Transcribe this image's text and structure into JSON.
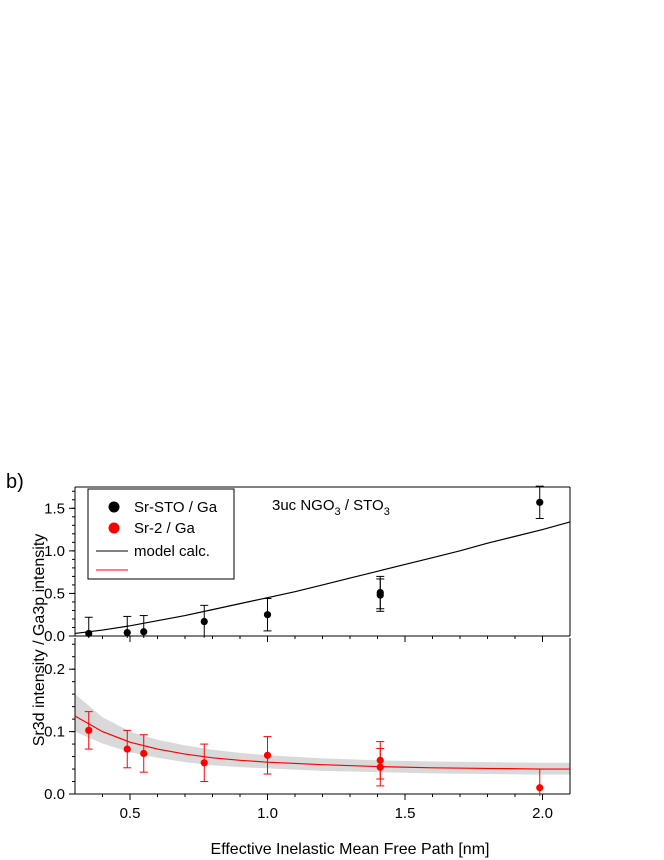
{
  "figure": {
    "panel_label": "b)",
    "ylabel": "Sr3d intensity / Ga3p intensity",
    "xlabel": "Effective Inelastic Mean Free Path [nm]",
    "annotation": {
      "base": "3uc NGO",
      "sub1": "3",
      "mid": " / STO",
      "sub2": "3"
    },
    "legend": [
      {
        "label": "Sr-STO / Ga",
        "kind": "marker",
        "color": "#000000"
      },
      {
        "label": "Sr-2 / Ga",
        "kind": "marker",
        "color": "#ff0000"
      },
      {
        "label": "model calc.",
        "kind": "line",
        "color": "#000000"
      },
      {
        "label": "",
        "kind": "line",
        "color": "#ff0000"
      }
    ]
  },
  "chart_data": [
    {
      "type": "scatter",
      "panel": "top",
      "xlim": [
        0.3,
        2.1
      ],
      "ylim": [
        0,
        1.75
      ],
      "x_ticks": [
        0.5,
        1.0,
        1.5,
        2.0
      ],
      "y_ticks": [
        0.0,
        0.5,
        1.0,
        1.5
      ],
      "y_tick_labels": [
        "0.0",
        "0.5",
        "1.0",
        "1.5"
      ],
      "series": [
        {
          "name": "Sr-STO / Ga",
          "color": "#000000",
          "points": [
            {
              "x": 0.35,
              "y": 0.03,
              "err": 0.19
            },
            {
              "x": 0.49,
              "y": 0.04,
              "err": 0.19
            },
            {
              "x": 0.55,
              "y": 0.05,
              "err": 0.19
            },
            {
              "x": 0.77,
              "y": 0.17,
              "err": 0.19
            },
            {
              "x": 1.0,
              "y": 0.25,
              "err": 0.19
            },
            {
              "x": 1.41,
              "y": 0.51,
              "err": 0.19
            },
            {
              "x": 1.41,
              "y": 0.48,
              "err": 0.19
            },
            {
              "x": 1.99,
              "y": 1.57,
              "err": 0.19
            }
          ]
        },
        {
          "name": "model calc.",
          "color": "#000000",
          "line": [
            [
              0.3,
              0.03
            ],
            [
              0.4,
              0.07
            ],
            [
              0.5,
              0.12
            ],
            [
              0.6,
              0.18
            ],
            [
              0.7,
              0.24
            ],
            [
              0.8,
              0.31
            ],
            [
              0.9,
              0.38
            ],
            [
              1.0,
              0.45
            ],
            [
              1.1,
              0.52
            ],
            [
              1.2,
              0.6
            ],
            [
              1.3,
              0.68
            ],
            [
              1.4,
              0.76
            ],
            [
              1.5,
              0.84
            ],
            [
              1.6,
              0.92
            ],
            [
              1.7,
              1.0
            ],
            [
              1.8,
              1.09
            ],
            [
              1.9,
              1.17
            ],
            [
              2.0,
              1.25
            ],
            [
              2.1,
              1.34
            ]
          ]
        }
      ]
    },
    {
      "type": "scatter",
      "panel": "bottom",
      "xlim": [
        0.3,
        2.1
      ],
      "ylim": [
        0,
        0.25
      ],
      "x_ticks": [
        0.5,
        1.0,
        1.5,
        2.0
      ],
      "x_tick_labels": [
        "0.5",
        "1.0",
        "1.5",
        "2.0"
      ],
      "y_ticks": [
        0.0,
        0.1,
        0.2
      ],
      "y_tick_labels": [
        "0.0",
        "0.1",
        "0.2"
      ],
      "series": [
        {
          "name": "Sr-2 / Ga",
          "color": "#ff0000",
          "points": [
            {
              "x": 0.35,
              "y": 0.102,
              "err": 0.03
            },
            {
              "x": 0.49,
              "y": 0.072,
              "err": 0.03
            },
            {
              "x": 0.55,
              "y": 0.065,
              "err": 0.03
            },
            {
              "x": 0.77,
              "y": 0.05,
              "err": 0.03
            },
            {
              "x": 1.0,
              "y": 0.062,
              "err": 0.03
            },
            {
              "x": 1.41,
              "y": 0.054,
              "err": 0.03
            },
            {
              "x": 1.41,
              "y": 0.043,
              "err": 0.03
            },
            {
              "x": 1.99,
              "y": 0.01,
              "err": 0.03
            }
          ]
        },
        {
          "name": "model calc.",
          "color": "#ff0000",
          "band_color": "#d9d9d9",
          "line": [
            [
              0.3,
              0.125
            ],
            [
              0.4,
              0.1
            ],
            [
              0.5,
              0.083
            ],
            [
              0.6,
              0.072
            ],
            [
              0.7,
              0.064
            ],
            [
              0.8,
              0.058
            ],
            [
              0.9,
              0.054
            ],
            [
              1.0,
              0.051
            ],
            [
              1.2,
              0.047
            ],
            [
              1.4,
              0.044
            ],
            [
              1.6,
              0.042
            ],
            [
              1.8,
              0.041
            ],
            [
              2.0,
              0.04
            ],
            [
              2.1,
              0.04
            ]
          ],
          "band_upper": [
            [
              0.3,
              0.16
            ],
            [
              0.4,
              0.123
            ],
            [
              0.5,
              0.1
            ],
            [
              0.6,
              0.087
            ],
            [
              0.7,
              0.078
            ],
            [
              0.8,
              0.071
            ],
            [
              0.9,
              0.066
            ],
            [
              1.0,
              0.062
            ],
            [
              1.2,
              0.057
            ],
            [
              1.4,
              0.054
            ],
            [
              1.6,
              0.052
            ],
            [
              1.8,
              0.051
            ],
            [
              2.0,
              0.05
            ],
            [
              2.1,
              0.05
            ]
          ],
          "band_lower": [
            [
              0.3,
              0.1
            ],
            [
              0.4,
              0.081
            ],
            [
              0.5,
              0.067
            ],
            [
              0.6,
              0.058
            ],
            [
              0.7,
              0.051
            ],
            [
              0.8,
              0.046
            ],
            [
              0.9,
              0.043
            ],
            [
              1.0,
              0.041
            ],
            [
              1.2,
              0.037
            ],
            [
              1.4,
              0.035
            ],
            [
              1.6,
              0.033
            ],
            [
              1.8,
              0.032
            ],
            [
              2.0,
              0.031
            ],
            [
              2.1,
              0.031
            ]
          ]
        }
      ]
    }
  ]
}
